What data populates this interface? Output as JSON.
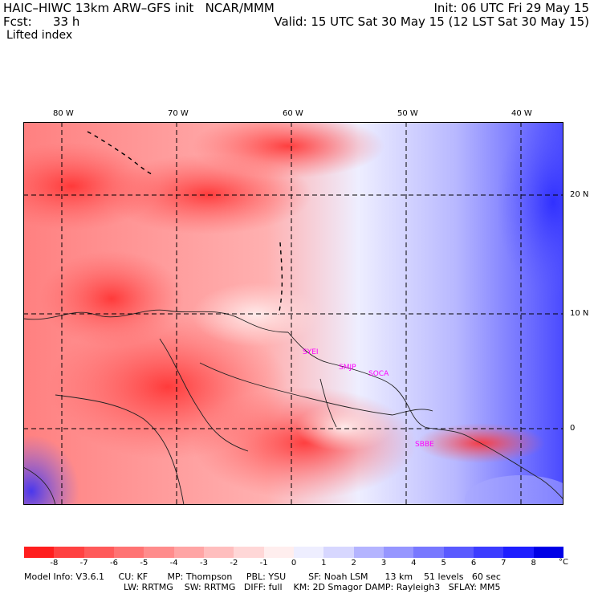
{
  "header": {
    "title": "HAIC–HIWC 13km ARW–GFS init   NCAR/MMM",
    "init": "Init: 06 UTC Fri 29 May 15",
    "fcst_label": "Fcst:",
    "fcst_value": "33 h",
    "valid": "Valid: 15 UTC Sat 30 May 15 (12 LST Sat 30 May 15)",
    "field": "Lifted index"
  },
  "map": {
    "lon_labels": [
      "80 W",
      "70 W",
      "60 W",
      "50 W",
      "40 W"
    ],
    "lat_labels": [
      "20 N",
      "10 N",
      "0"
    ],
    "stations": [
      "SYEI",
      "SMJP",
      "SOCA",
      "SBBE"
    ]
  },
  "colorbar": {
    "ticks": [
      "-8",
      "-7",
      "-6",
      "-5",
      "-4",
      "-3",
      "-2",
      "-1",
      "0",
      "1",
      "2",
      "3",
      "4",
      "5",
      "6",
      "7",
      "8"
    ],
    "unit": "°C",
    "colors": [
      "#ff1e1e",
      "#ff4141",
      "#ff5a5a",
      "#ff7373",
      "#ff8c8c",
      "#ffa5a5",
      "#ffbebe",
      "#ffd7d7",
      "#ffeeee",
      "#eeeeff",
      "#d7d7ff",
      "#b4b4ff",
      "#9696ff",
      "#7878ff",
      "#5a5aff",
      "#3c3cff",
      "#1e1eff",
      "#0000e6"
    ]
  },
  "footer": {
    "line1": "Model Info: V3.6.1     CU: KF       MP: Thompson     PBL: YSU        SF: Noah LSM      13 km    51 levels   60 sec",
    "line2": "LW: RRTMG    SW: RRTMG   DIFF: full    KM: 2D Smagor DAMP: Rayleigh3   SFLAY: MM5"
  }
}
